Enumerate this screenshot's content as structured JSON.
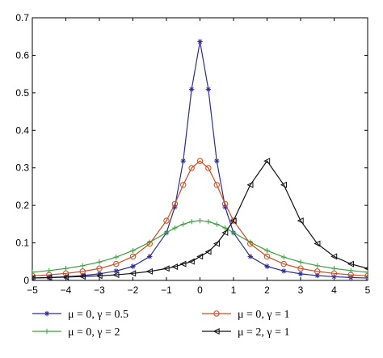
{
  "chart_data": {
    "type": "line",
    "title": "",
    "xlabel": "",
    "ylabel": "",
    "xlim": [
      -5,
      5
    ],
    "ylim": [
      0,
      0.7
    ],
    "x_ticks": [
      -5,
      -4,
      -3,
      -2,
      -1,
      0,
      1,
      2,
      3,
      4,
      5
    ],
    "x_tick_labels": [
      "−5",
      "−4",
      "−3",
      "−2",
      "−1",
      "0",
      "1",
      "2",
      "3",
      "4",
      "5"
    ],
    "y_ticks": [
      0,
      0.1,
      0.2,
      0.3,
      0.4,
      0.5,
      0.6,
      0.7
    ],
    "y_tick_labels": [
      "0",
      "0.1",
      "0.2",
      "0.3",
      "0.4",
      "0.5",
      "0.6",
      "0.7"
    ],
    "grid": false,
    "legend_position": "below the plot, two columns",
    "x": [
      -5,
      -4.5,
      -4,
      -3.5,
      -3,
      -2.5,
      -2,
      -1.5,
      -1,
      -0.75,
      -0.5,
      -0.25,
      0,
      0.25,
      0.5,
      0.75,
      1,
      1.5,
      2,
      2.5,
      3,
      3.5,
      4,
      4.5,
      5
    ],
    "series": [
      {
        "name": "μ = 0, γ = 0.5",
        "color": "#2b2ba0",
        "marker": "asterisk",
        "values": [
          0.0063,
          0.0078,
          0.0098,
          0.0129,
          0.0175,
          0.0251,
          0.0374,
          0.0637,
          0.127,
          0.1958,
          0.3183,
          0.5093,
          0.6366,
          0.5093,
          0.3183,
          0.1958,
          0.127,
          0.0637,
          0.0374,
          0.0251,
          0.0175,
          0.0129,
          0.0098,
          0.0078,
          0.0063
        ]
      },
      {
        "name": "μ = 0, γ = 1",
        "color": "#d04a1e",
        "marker": "circle",
        "values": [
          0.0122,
          0.0149,
          0.0187,
          0.024,
          0.0318,
          0.0439,
          0.0637,
          0.0979,
          0.1592,
          0.2037,
          0.2546,
          0.2996,
          0.3183,
          0.2996,
          0.2546,
          0.2037,
          0.1592,
          0.0979,
          0.0637,
          0.0439,
          0.0318,
          0.024,
          0.0187,
          0.0149,
          0.0122
        ]
      },
      {
        "name": "μ = 0, γ = 2",
        "color": "#3aa23a",
        "marker": "plus",
        "values": [
          0.0219,
          0.0262,
          0.0318,
          0.0392,
          0.049,
          0.0621,
          0.0796,
          0.1019,
          0.1273,
          0.1398,
          0.1498,
          0.1567,
          0.1592,
          0.1567,
          0.1498,
          0.1398,
          0.1273,
          0.1019,
          0.0796,
          0.0621,
          0.049,
          0.0392,
          0.0318,
          0.0262,
          0.0219
        ]
      },
      {
        "name": "μ = 2, γ = 1",
        "color": "#111111",
        "marker": "triangle-left",
        "values": [
          0.0065,
          0.0075,
          0.0088,
          0.0104,
          0.0122,
          0.0149,
          0.0187,
          0.024,
          0.0318,
          0.0365,
          0.0439,
          0.0503,
          0.0637,
          0.0764,
          0.0979,
          0.1273,
          0.1592,
          0.2546,
          0.3183,
          0.2546,
          0.1592,
          0.0979,
          0.0637,
          0.0439,
          0.0318
        ]
      }
    ]
  }
}
